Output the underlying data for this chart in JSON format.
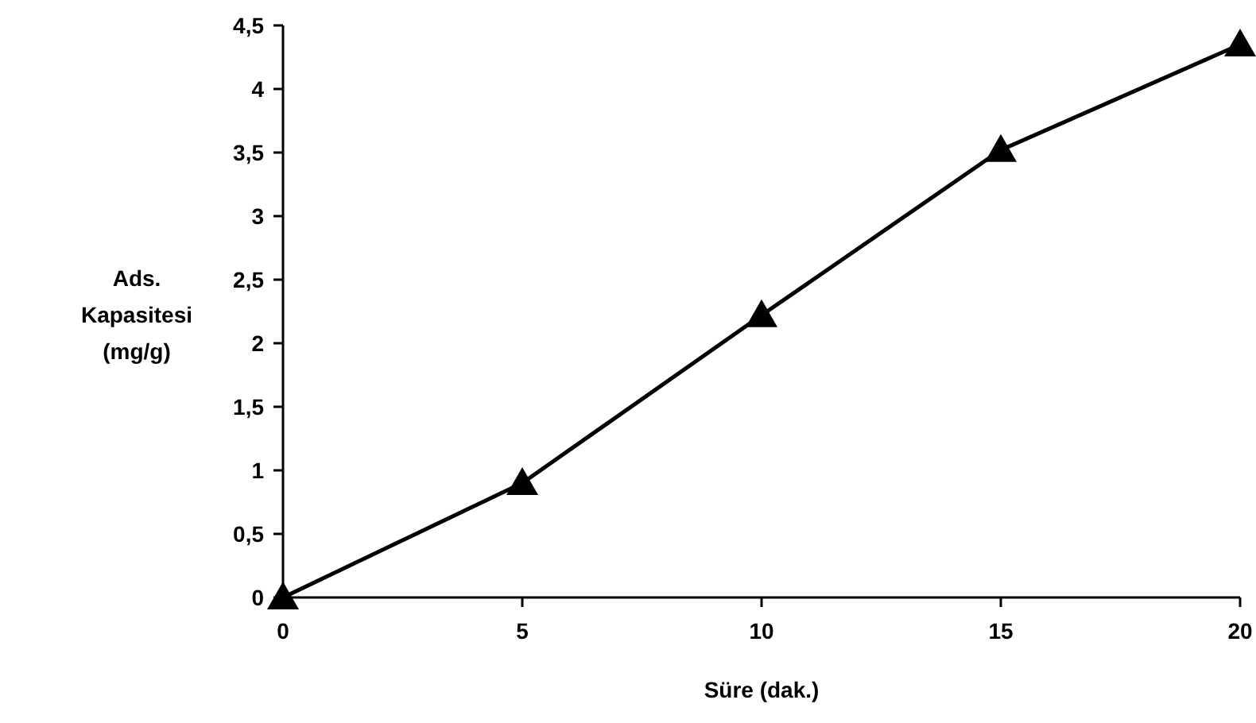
{
  "chart_data": {
    "type": "line",
    "xlabel": "Süre (dak.)",
    "ylabel": "Ads. Kapasitesi (mg/g)",
    "x": [
      0,
      5,
      10,
      15,
      20
    ],
    "series": [
      {
        "color": "#000000",
        "values": [
          0,
          0.9,
          2.22,
          3.52,
          4.35
        ]
      }
    ],
    "xlim": [
      0,
      20
    ],
    "xticks": [
      0,
      5,
      10,
      15,
      20
    ],
    "ylim": [
      0,
      4.5
    ],
    "yticks": [
      0,
      {
        "value": 0.5,
        "label": "0,5"
      },
      1,
      {
        "value": 1.5,
        "label": "1,5"
      },
      2,
      {
        "value": 2.5,
        "label": "2,5"
      },
      3,
      {
        "value": 3.5,
        "label": "3,5"
      },
      4,
      {
        "value": 4.5,
        "label": "4,5"
      }
    ],
    "marker": "triangle",
    "line_style": "solid"
  }
}
